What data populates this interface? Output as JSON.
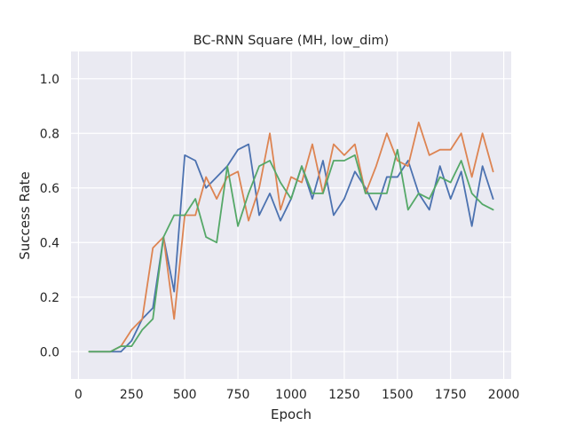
{
  "chart_data": {
    "type": "line",
    "title": "BC-RNN Square (MH, low_dim)",
    "xlabel": "Epoch",
    "ylabel": "Success Rate",
    "xlim": [
      -35,
      2035
    ],
    "ylim": [
      -0.1,
      1.1
    ],
    "xticks": [
      0,
      250,
      500,
      750,
      1000,
      1250,
      1500,
      1750,
      2000
    ],
    "yticks": [
      0.0,
      0.2,
      0.4,
      0.6,
      0.8,
      1.0
    ],
    "xtick_labels": [
      "0",
      "250",
      "500",
      "750",
      "1000",
      "1250",
      "1500",
      "1750",
      "2000"
    ],
    "ytick_labels": [
      "0.0",
      "0.2",
      "0.4",
      "0.6",
      "0.8",
      "1.0"
    ],
    "grid": true,
    "background": "#eaeaf2",
    "x": [
      50,
      100,
      150,
      200,
      250,
      300,
      350,
      400,
      450,
      500,
      550,
      600,
      650,
      700,
      750,
      800,
      850,
      900,
      950,
      1000,
      1050,
      1100,
      1150,
      1200,
      1250,
      1300,
      1350,
      1400,
      1450,
      1500,
      1550,
      1600,
      1650,
      1700,
      1750,
      1800,
      1850,
      1900,
      1950
    ],
    "series": [
      {
        "color": "#4c72b0",
        "values": [
          0.0,
          0.0,
          0.0,
          0.0,
          0.04,
          0.12,
          0.16,
          0.42,
          0.22,
          0.72,
          0.7,
          0.6,
          0.64,
          0.68,
          0.74,
          0.76,
          0.5,
          0.58,
          0.48,
          0.56,
          0.68,
          0.56,
          0.7,
          0.5,
          0.56,
          0.66,
          0.6,
          0.52,
          0.64,
          0.64,
          0.7,
          0.58,
          0.52,
          0.68,
          0.56,
          0.66,
          0.46,
          0.68,
          0.56
        ]
      },
      {
        "color": "#dd8452",
        "values": [
          0.0,
          0.0,
          0.0,
          0.02,
          0.08,
          0.12,
          0.38,
          0.42,
          0.12,
          0.5,
          0.5,
          0.64,
          0.56,
          0.64,
          0.66,
          0.48,
          0.6,
          0.8,
          0.52,
          0.64,
          0.62,
          0.76,
          0.58,
          0.76,
          0.72,
          0.76,
          0.58,
          0.68,
          0.8,
          0.7,
          0.68,
          0.84,
          0.72,
          0.74,
          0.74,
          0.8,
          0.64,
          0.8,
          0.66
        ]
      },
      {
        "color": "#55a868",
        "values": [
          0.0,
          0.0,
          0.0,
          0.02,
          0.02,
          0.08,
          0.12,
          0.42,
          0.5,
          0.5,
          0.56,
          0.42,
          0.4,
          0.68,
          0.46,
          0.58,
          0.68,
          0.7,
          0.62,
          0.56,
          0.68,
          0.58,
          0.58,
          0.7,
          0.7,
          0.72,
          0.58,
          0.58,
          0.58,
          0.74,
          0.52,
          0.58,
          0.56,
          0.64,
          0.62,
          0.7,
          0.58,
          0.54,
          0.52
        ]
      }
    ]
  }
}
